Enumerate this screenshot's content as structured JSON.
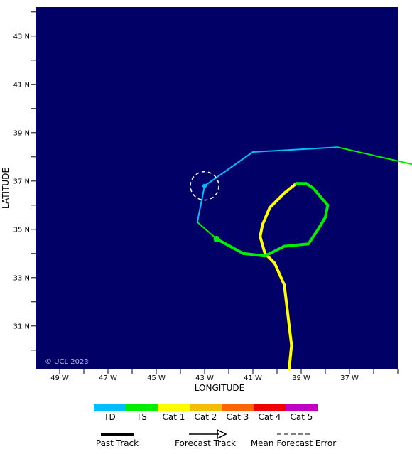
{
  "map": {
    "copyright": "© UCL 2023",
    "background_color": "#000066",
    "axes": {
      "xlabel": "LONGITUDE",
      "ylabel": "LATITUDE",
      "lon_ticks": [
        {
          "value": -49,
          "label": "49 W"
        },
        {
          "value": -47,
          "label": "47 W"
        },
        {
          "value": -45,
          "label": "45 W"
        },
        {
          "value": -43,
          "label": "43 W"
        },
        {
          "value": -41,
          "label": "41 W"
        },
        {
          "value": -39,
          "label": "39 W"
        },
        {
          "value": -37,
          "label": "37 W"
        }
      ],
      "lat_ticks": [
        {
          "value": 43,
          "label": "43 N"
        },
        {
          "value": 41,
          "label": "41 N"
        },
        {
          "value": 39,
          "label": "39 N"
        },
        {
          "value": 37,
          "label": "37 N"
        },
        {
          "value": 35,
          "label": "35 N"
        },
        {
          "value": 33,
          "label": "33 N"
        },
        {
          "value": 31,
          "label": "31 N"
        }
      ]
    },
    "past_track": [
      {
        "lon": -39.5,
        "lat": 29.2,
        "category": "Cat 1"
      },
      {
        "lon": -39.4,
        "lat": 30.2,
        "category": "Cat 1"
      },
      {
        "lon": -39.7,
        "lat": 32.7,
        "category": "Cat 1"
      },
      {
        "lon": -40.1,
        "lat": 33.6,
        "category": "Cat 1"
      },
      {
        "lon": -40.5,
        "lat": 34.0,
        "category": "Cat 1"
      },
      {
        "lon": -40.7,
        "lat": 34.7,
        "category": "Cat 1"
      },
      {
        "lon": -40.6,
        "lat": 35.2,
        "category": "Cat 1"
      },
      {
        "lon": -40.3,
        "lat": 35.9,
        "category": "Cat 1"
      },
      {
        "lon": -39.7,
        "lat": 36.5,
        "category": "Cat 1"
      },
      {
        "lon": -39.2,
        "lat": 36.9,
        "category": "Cat 1"
      },
      {
        "lon": -38.8,
        "lat": 36.9,
        "category": "TS"
      },
      {
        "lon": -38.5,
        "lat": 36.7,
        "category": "TS"
      },
      {
        "lon": -37.9,
        "lat": 36.0,
        "category": "TS"
      },
      {
        "lon": -38.0,
        "lat": 35.5,
        "category": "TS"
      },
      {
        "lon": -38.3,
        "lat": 35.0,
        "category": "TS"
      },
      {
        "lon": -38.7,
        "lat": 34.4,
        "category": "TS"
      },
      {
        "lon": -39.7,
        "lat": 34.3,
        "category": "TS"
      },
      {
        "lon": -40.5,
        "lat": 33.9,
        "category": "TS"
      },
      {
        "lon": -41.4,
        "lat": 34.0,
        "category": "TS"
      },
      {
        "lon": -42.5,
        "lat": 34.6,
        "category": "TS"
      }
    ],
    "forecast_track": [
      {
        "lon": -42.5,
        "lat": 34.6,
        "category": "TS"
      },
      {
        "lon": -43.3,
        "lat": 35.3,
        "category": "TS"
      },
      {
        "lon": -43.0,
        "lat": 36.8,
        "category": "TD"
      },
      {
        "lon": -41.0,
        "lat": 38.2,
        "category": "TD"
      },
      {
        "lon": -37.5,
        "lat": 38.4,
        "category": "TD"
      },
      {
        "lon": -34.0,
        "lat": 37.6,
        "category": "TS"
      }
    ],
    "current_position": {
      "lon": -42.5,
      "lat": 34.6,
      "category": "TS"
    },
    "forecast_point": {
      "lon": -43.0,
      "lat": 36.8,
      "category": "TD"
    }
  },
  "legend": {
    "categories": [
      {
        "label": "TD",
        "color": "#00bfff"
      },
      {
        "label": "TS",
        "color": "#00ee00"
      },
      {
        "label": "Cat 1",
        "color": "#ffff00"
      },
      {
        "label": "Cat 2",
        "color": "#f0c000"
      },
      {
        "label": "Cat 3",
        "color": "#ff6600"
      },
      {
        "label": "Cat 4",
        "color": "#ee0000"
      },
      {
        "label": "Cat 5",
        "color": "#c000c0"
      }
    ],
    "past_track_label": "Past Track",
    "forecast_track_label": "Forecast Track",
    "error_label": "Mean Forecast Error"
  }
}
